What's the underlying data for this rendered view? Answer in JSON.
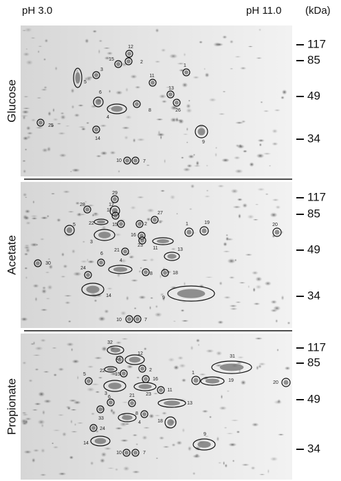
{
  "header": {
    "left": "pH 3.0",
    "right": "pH 11.0",
    "unit": "(kDa)"
  },
  "panels": [
    {
      "label": "Glucose",
      "markers": [
        117,
        85,
        49,
        34
      ],
      "spots": [
        1,
        2,
        3,
        4,
        5,
        6,
        7,
        8,
        9,
        10,
        11,
        12,
        13,
        14,
        15,
        25,
        26
      ]
    },
    {
      "label": "Acetate",
      "markers": [
        117,
        85,
        49,
        34
      ],
      "spots": [
        1,
        2,
        3,
        4,
        5,
        6,
        7,
        8,
        9,
        10,
        11,
        12,
        13,
        14,
        15,
        16,
        17,
        18,
        19,
        20,
        21,
        22,
        23,
        24,
        27,
        28,
        29,
        30
      ]
    },
    {
      "label": "Propionate",
      "markers": [
        117,
        85,
        49,
        34
      ],
      "spots": [
        1,
        2,
        3,
        4,
        5,
        6,
        7,
        8,
        9,
        10,
        11,
        12,
        13,
        14,
        15,
        16,
        17,
        18,
        19,
        20,
        21,
        22,
        23,
        24,
        31,
        32,
        33
      ]
    }
  ]
}
